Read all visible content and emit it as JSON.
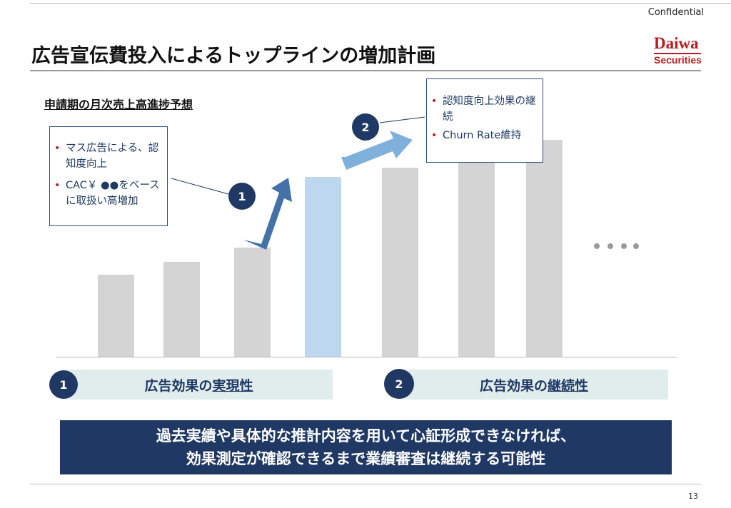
{
  "header": {
    "confidential": "Confidential",
    "title": "広告宣伝費投入によるトップラインの増加計画",
    "logo_line1": "Daiwa",
    "logo_line2": "Securities"
  },
  "subtitle": "申請期の月次売上高進捗予想",
  "chart_data": {
    "type": "bar",
    "categories": [
      "",
      "",
      "",
      "",
      "",
      "",
      ""
    ],
    "values": [
      115,
      133,
      153,
      252,
      265,
      284,
      304
    ],
    "ylim": [
      0,
      330
    ],
    "highlight_index": 3,
    "colors": {
      "bar": "#d4d4d4",
      "highlight": "#bdd7ee"
    },
    "continuation": "・・・・"
  },
  "callouts": {
    "c1": {
      "items": [
        "マス広告による、認知度向上",
        "CAC￥ ●●をベースに取扱い高増加"
      ]
    },
    "c2": {
      "items": [
        "認知度向上効果の継続",
        "Churn Rate維持"
      ]
    },
    "bullet": "•"
  },
  "markers": {
    "m1": "1",
    "m2": "2"
  },
  "sections": {
    "s1": {
      "num": "1",
      "prefix": "広告効果の",
      "emph": "実現性"
    },
    "s2": {
      "num": "2",
      "prefix": "広告効果の",
      "emph": "継続性"
    }
  },
  "banner": {
    "line1": "過去実績や具体的な推計内容を用いて心証形成できなければ、",
    "line2": "効果測定が確認できるまで業績審査は継続する可能性"
  },
  "footer": {
    "page": "13"
  },
  "colors": {
    "navy": "#1f3864",
    "accent_red": "#b81c22",
    "arrow1": "#4472a8",
    "arrow2": "#7fb0dc"
  }
}
